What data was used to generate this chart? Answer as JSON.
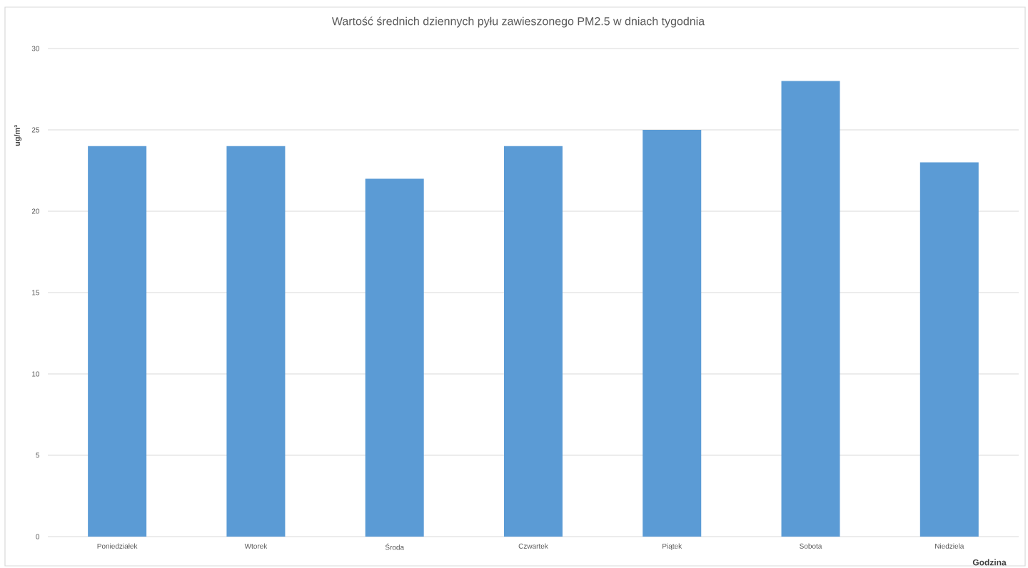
{
  "chart_data": {
    "type": "bar",
    "title": "Wartość średnich dziennych pyłu zawieszonego PM2.5 w dniach tygodnia",
    "xlabel": "Godzina",
    "ylabel": "ug/m³",
    "categories": [
      "Poniedziałek",
      "Wtorek",
      "Środa",
      "Czwartek",
      "Piątek",
      "Sobota",
      "Niedziela"
    ],
    "values": [
      24,
      24,
      22,
      24,
      25,
      28,
      23
    ],
    "color": "#5b9bd5",
    "ylim": [
      0,
      30
    ],
    "yticks": [
      0,
      5,
      10,
      15,
      20,
      25,
      30
    ],
    "grid": "y"
  }
}
